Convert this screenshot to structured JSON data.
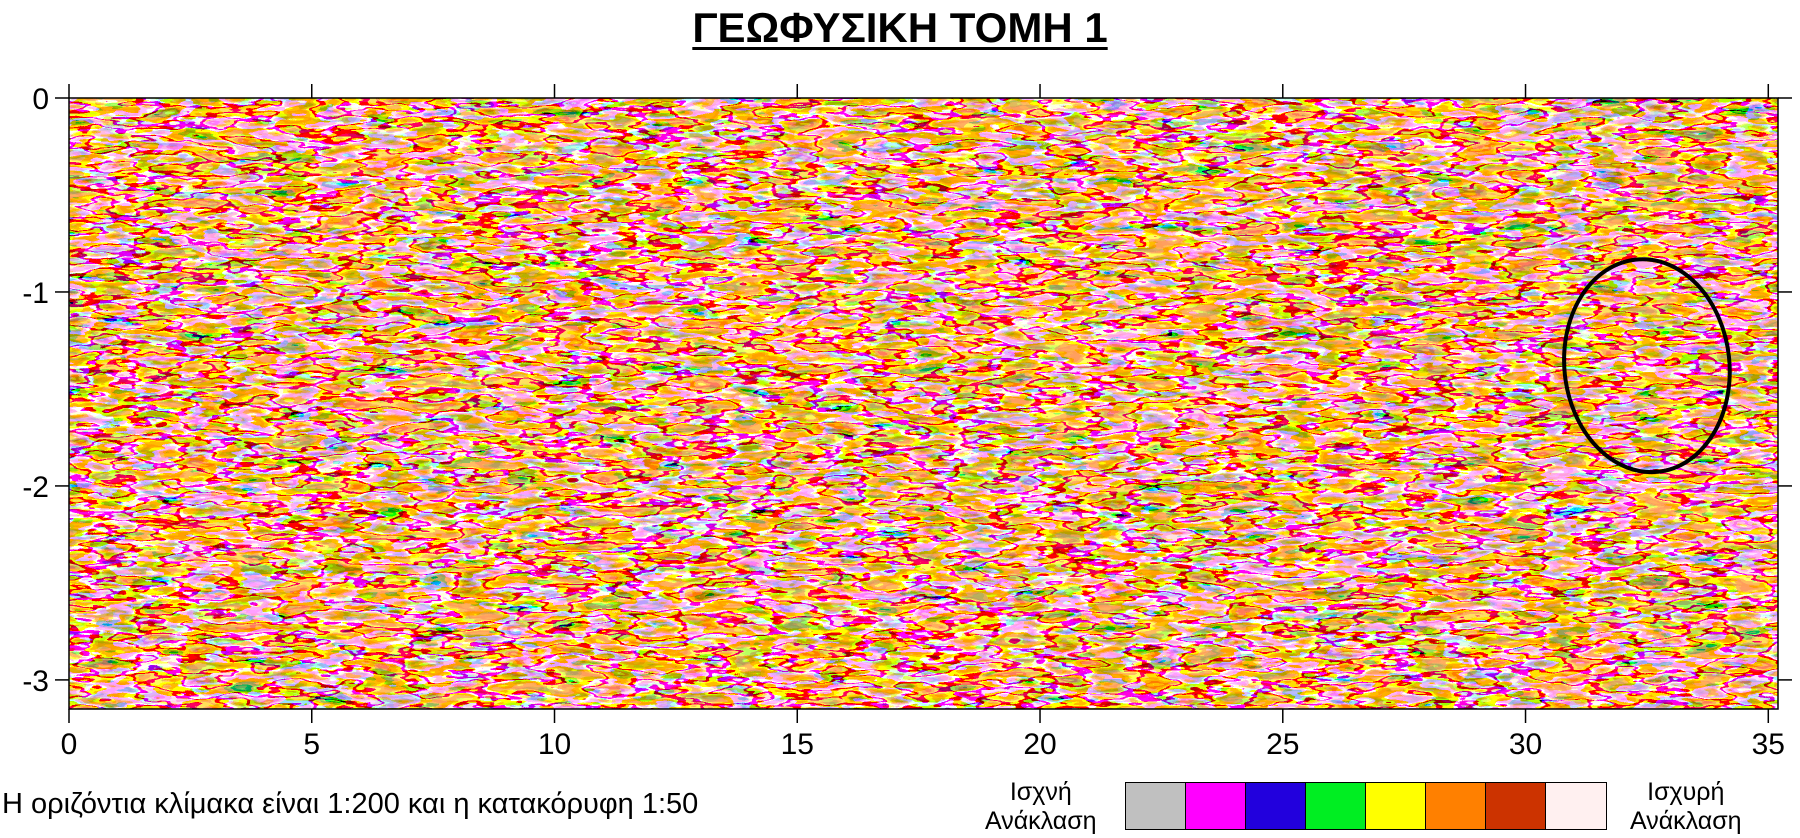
{
  "chart_data": {
    "type": "heatmap",
    "title": "ΓΕΩΦΥΣΙΚΗ ΤΟΜΗ 1",
    "xlabel": "",
    "ylabel": "",
    "xlim": [
      0,
      35.2
    ],
    "ylim": [
      -3.15,
      0
    ],
    "x_ticks": [
      0,
      5,
      10,
      15,
      20,
      25,
      30,
      35
    ],
    "y_ticks": [
      0,
      -1,
      -2,
      -3
    ],
    "grid": false,
    "colorscale": [
      {
        "color": "#c0c0c0"
      },
      {
        "color": "#ff00ff"
      },
      {
        "color": "#2200dd"
      },
      {
        "color": "#00ee22"
      },
      {
        "color": "#ffff00"
      },
      {
        "color": "#ff8000"
      },
      {
        "color": "#cc3300"
      },
      {
        "color": "#fff0f0"
      }
    ],
    "colorscale_low_label": "Ισχνή Ανάκλαση",
    "colorscale_high_label": "Ισχυρή Ανάκλαση",
    "annotations": [
      {
        "type": "ellipse",
        "center": [
          32.5,
          -1.38
        ],
        "rx": 1.7,
        "ry": 0.55,
        "description": "marked anomaly"
      }
    ]
  },
  "note": "Η οριζόντια κλίμακα είναι 1:200 και η κατακόρυφη 1:50",
  "legend": {
    "low_line1": "Ισχνή",
    "low_line2": "Ανάκλαση",
    "high_line1": "Ισχυρή",
    "high_line2": "Ανάκλαση"
  }
}
